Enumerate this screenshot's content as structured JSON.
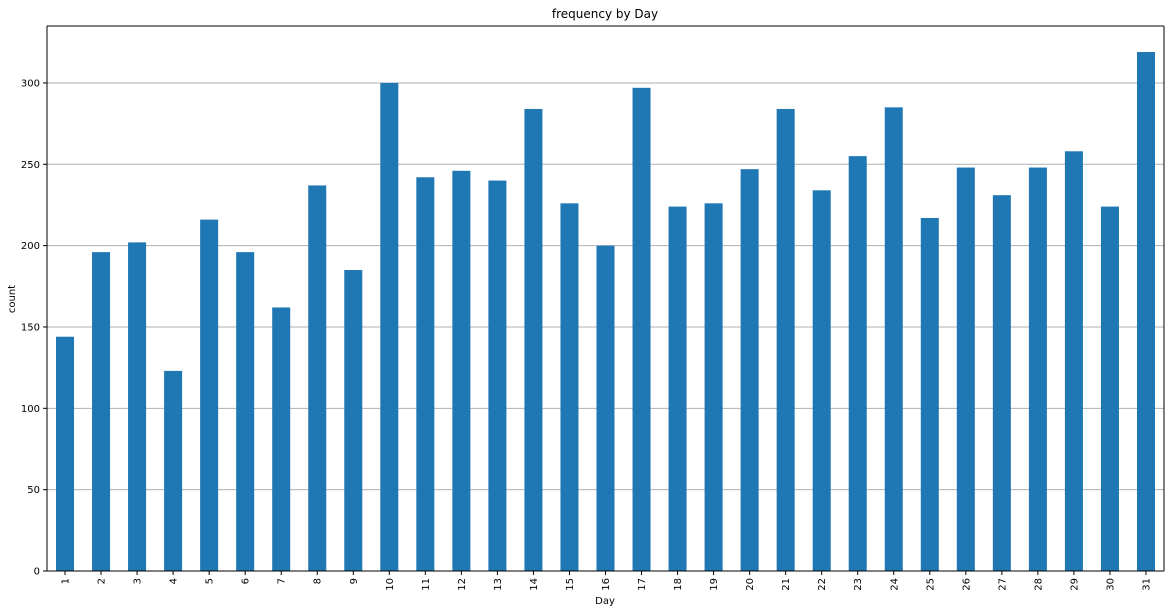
{
  "chart_data": {
    "type": "bar",
    "title": "frequency by Day",
    "xlabel": "Day",
    "ylabel": "count",
    "categories": [
      "1",
      "2",
      "3",
      "4",
      "5",
      "6",
      "7",
      "8",
      "9",
      "10",
      "11",
      "12",
      "13",
      "14",
      "15",
      "16",
      "17",
      "18",
      "19",
      "20",
      "21",
      "22",
      "23",
      "24",
      "25",
      "26",
      "27",
      "28",
      "29",
      "30",
      "31"
    ],
    "values": [
      144,
      196,
      202,
      123,
      216,
      196,
      162,
      237,
      185,
      300,
      242,
      246,
      240,
      284,
      226,
      200,
      297,
      224,
      226,
      247,
      284,
      234,
      255,
      285,
      217,
      248,
      231,
      248,
      258,
      224,
      319
    ],
    "ylim": [
      0,
      335
    ],
    "yticks": [
      "0",
      "50",
      "100",
      "150",
      "200",
      "250",
      "300"
    ],
    "grid": "y",
    "colors": {
      "bar": "#1f77b4",
      "grid": "#b0b0b0",
      "axis": "#000000"
    }
  }
}
